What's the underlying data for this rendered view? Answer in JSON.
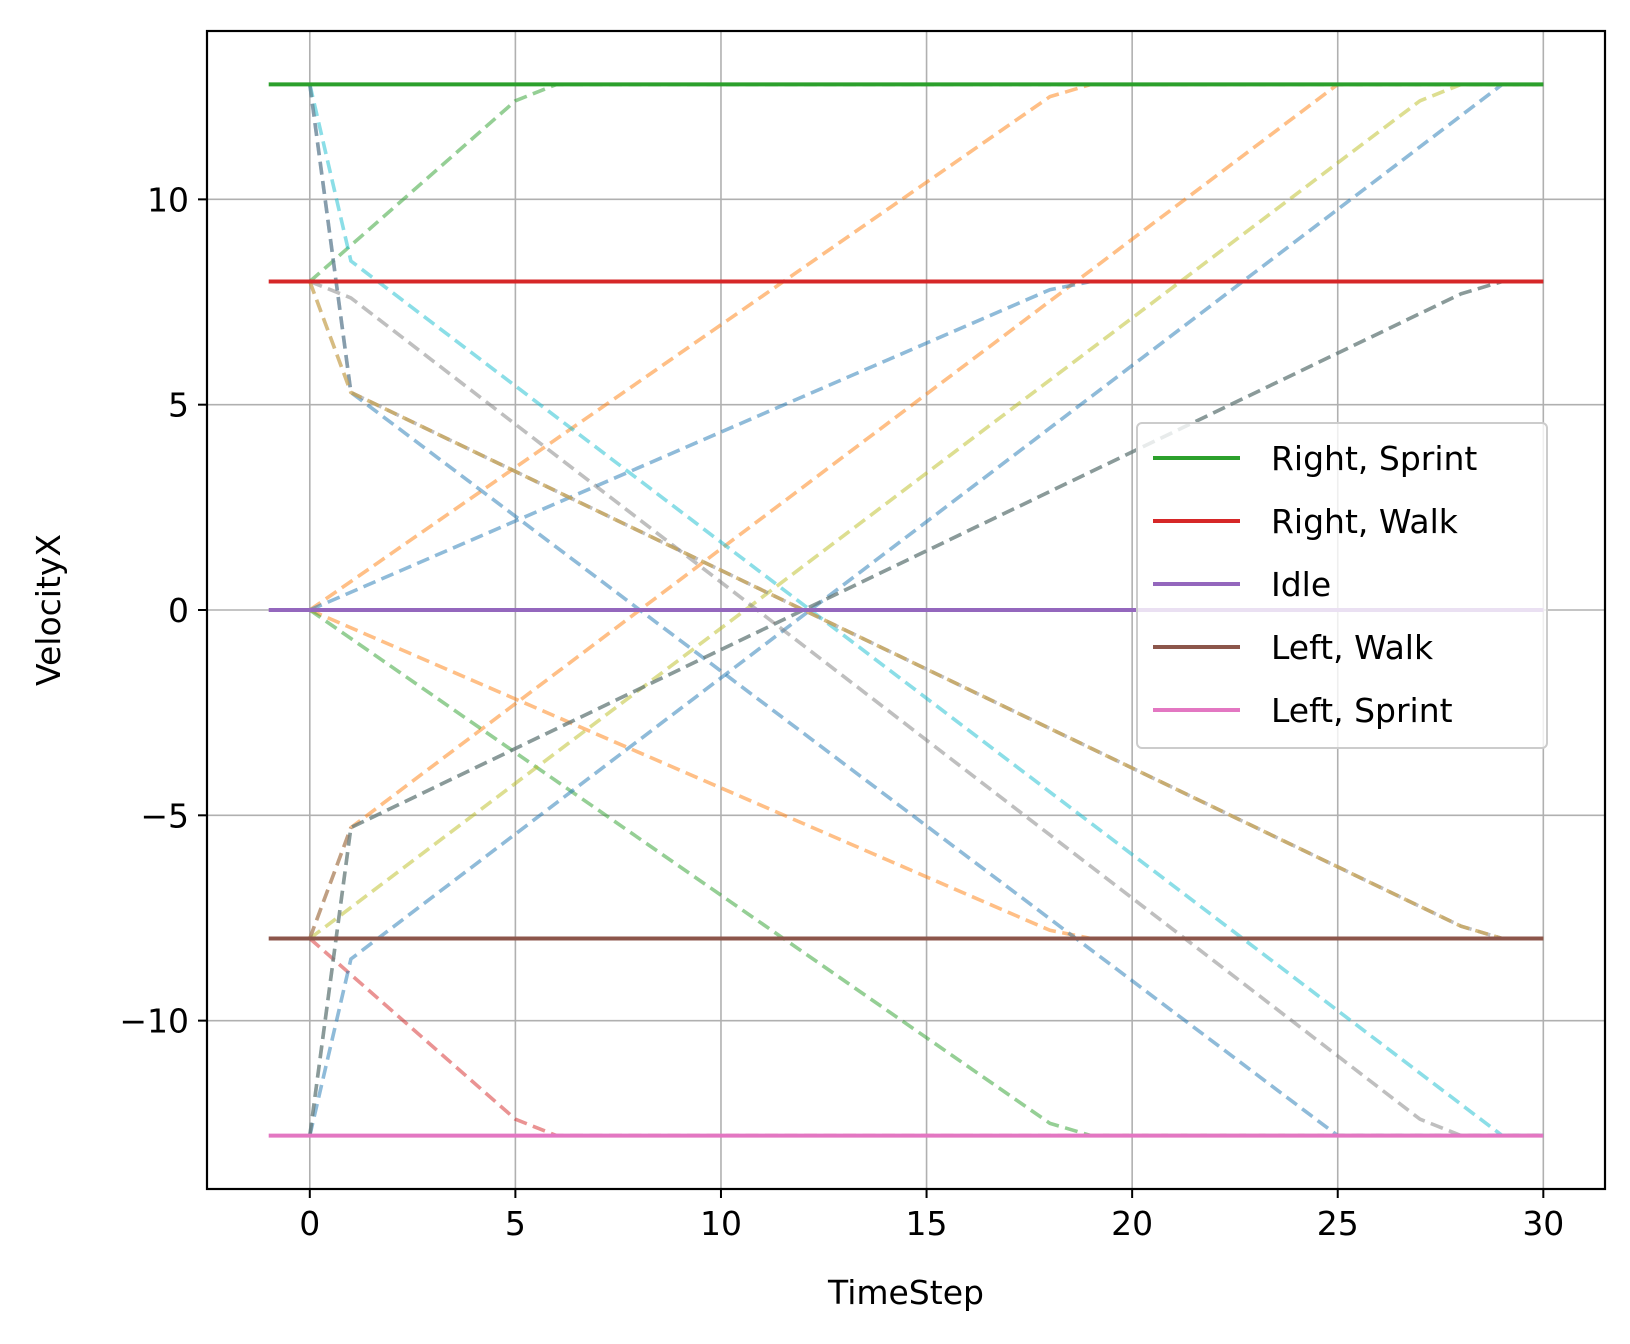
{
  "chart_data": {
    "type": "line",
    "xlabel": "TimeStep",
    "ylabel": "VelocityX",
    "xlim": [
      -2.5,
      31.5
    ],
    "ylim": [
      -14.1,
      14.1
    ],
    "xticks": [
      0,
      5,
      10,
      15,
      20,
      25,
      30
    ],
    "yticks": [
      -10,
      -5,
      0,
      5,
      10
    ],
    "ytick_labels": [
      "−10",
      "−5",
      "0",
      "5",
      "10"
    ],
    "grid": true,
    "legend_position": "center-right",
    "series": [
      {
        "name": "Right, Sprint",
        "color": "#2ca02c",
        "style": "solid",
        "x": [
          -1,
          30
        ],
        "y": [
          12.8,
          12.8
        ]
      },
      {
        "name": "Right, Walk",
        "color": "#d62728",
        "style": "solid",
        "x": [
          -1,
          30
        ],
        "y": [
          8,
          8
        ]
      },
      {
        "name": "Idle",
        "color": "#9467bd",
        "style": "solid",
        "x": [
          -1,
          30
        ],
        "y": [
          0,
          0
        ]
      },
      {
        "name": "Left, Walk",
        "color": "#8c564b",
        "style": "solid",
        "x": [
          -1,
          30
        ],
        "y": [
          -8,
          -8
        ]
      },
      {
        "name": "Left, Sprint",
        "color": "#e377c2",
        "style": "solid",
        "x": [
          -1,
          30
        ],
        "y": [
          -12.8,
          -12.8
        ]
      }
    ],
    "transitions": [
      {
        "color": "#ff7f0e",
        "x": [
          0,
          18,
          19,
          30
        ],
        "y": [
          0,
          12.5,
          12.8,
          12.8
        ]
      },
      {
        "color": "#ff7f0e",
        "x": [
          0,
          18,
          19,
          30
        ],
        "y": [
          0,
          -7.8,
          -8,
          -8
        ]
      },
      {
        "color": "#ff7f0e",
        "x": [
          0,
          1,
          25,
          30
        ],
        "y": [
          -8,
          -5.3,
          12.8,
          12.8
        ]
      },
      {
        "color": "#2ca02c",
        "x": [
          0,
          5,
          6,
          30
        ],
        "y": [
          8,
          12.4,
          12.8,
          12.8
        ]
      },
      {
        "color": "#2ca02c",
        "x": [
          0,
          18,
          19,
          30
        ],
        "y": [
          0,
          -12.5,
          -12.8,
          -12.8
        ]
      },
      {
        "color": "#d62728",
        "x": [
          0,
          5,
          6,
          30
        ],
        "y": [
          -8,
          -12.4,
          -12.8,
          -12.8
        ]
      },
      {
        "color": "#1f77b4",
        "x": [
          0,
          18,
          19,
          30
        ],
        "y": [
          0,
          7.8,
          8,
          8
        ]
      },
      {
        "color": "#1f77b4",
        "x": [
          0,
          1,
          25,
          30
        ],
        "y": [
          12.8,
          5.3,
          -12.8,
          -12.8
        ]
      },
      {
        "color": "#1f77b4",
        "x": [
          0,
          1,
          29,
          30
        ],
        "y": [
          -12.8,
          -8.5,
          12.8,
          12.8
        ]
      },
      {
        "color": "#bcbd22",
        "x": [
          0,
          27,
          28,
          30
        ],
        "y": [
          -8,
          12.4,
          12.8,
          12.8
        ]
      },
      {
        "color": "#17becf",
        "x": [
          0,
          1,
          29,
          30
        ],
        "y": [
          12.8,
          8.5,
          -12.8,
          -12.8
        ]
      },
      {
        "color": "#17becf",
        "x": [
          0,
          1,
          28,
          29,
          30
        ],
        "y": [
          -12.8,
          -5.3,
          7.7,
          8,
          8
        ]
      },
      {
        "color": "#7f7f7f",
        "x": [
          0,
          1,
          27,
          28,
          30
        ],
        "y": [
          8,
          7.6,
          -12.4,
          -12.8,
          -12.8
        ]
      },
      {
        "color": "#7f7f7f",
        "x": [
          0,
          1,
          28,
          29,
          30
        ],
        "y": [
          12.8,
          5.3,
          -7.7,
          -8,
          -8
        ]
      },
      {
        "color": "#e377c2",
        "x": [
          0,
          1,
          28,
          29,
          30
        ],
        "y": [
          8,
          5.3,
          -7.7,
          -8,
          -8
        ]
      },
      {
        "color": "#8c564b",
        "x": [
          0,
          1,
          28,
          29,
          30
        ],
        "y": [
          -12.8,
          -5.3,
          7.7,
          8,
          8
        ]
      },
      {
        "color": "#bcbd22",
        "x": [
          0,
          1,
          28,
          29,
          30
        ],
        "y": [
          8,
          5.3,
          -7.7,
          -8,
          -8
        ]
      },
      {
        "color": "#7f7f7f",
        "x": [
          0,
          1
        ],
        "y": [
          -8,
          -5.3
        ]
      }
    ]
  }
}
